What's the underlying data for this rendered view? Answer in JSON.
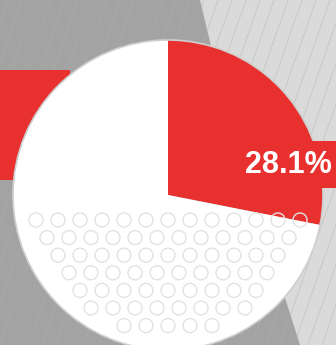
{
  "chart_data": {
    "type": "pie",
    "values": [
      28.1,
      71.9
    ],
    "value_labels": [
      "28.1%",
      null
    ],
    "colors": [
      "#e8312f",
      "#ffffff"
    ],
    "data_labels": true
  }
}
